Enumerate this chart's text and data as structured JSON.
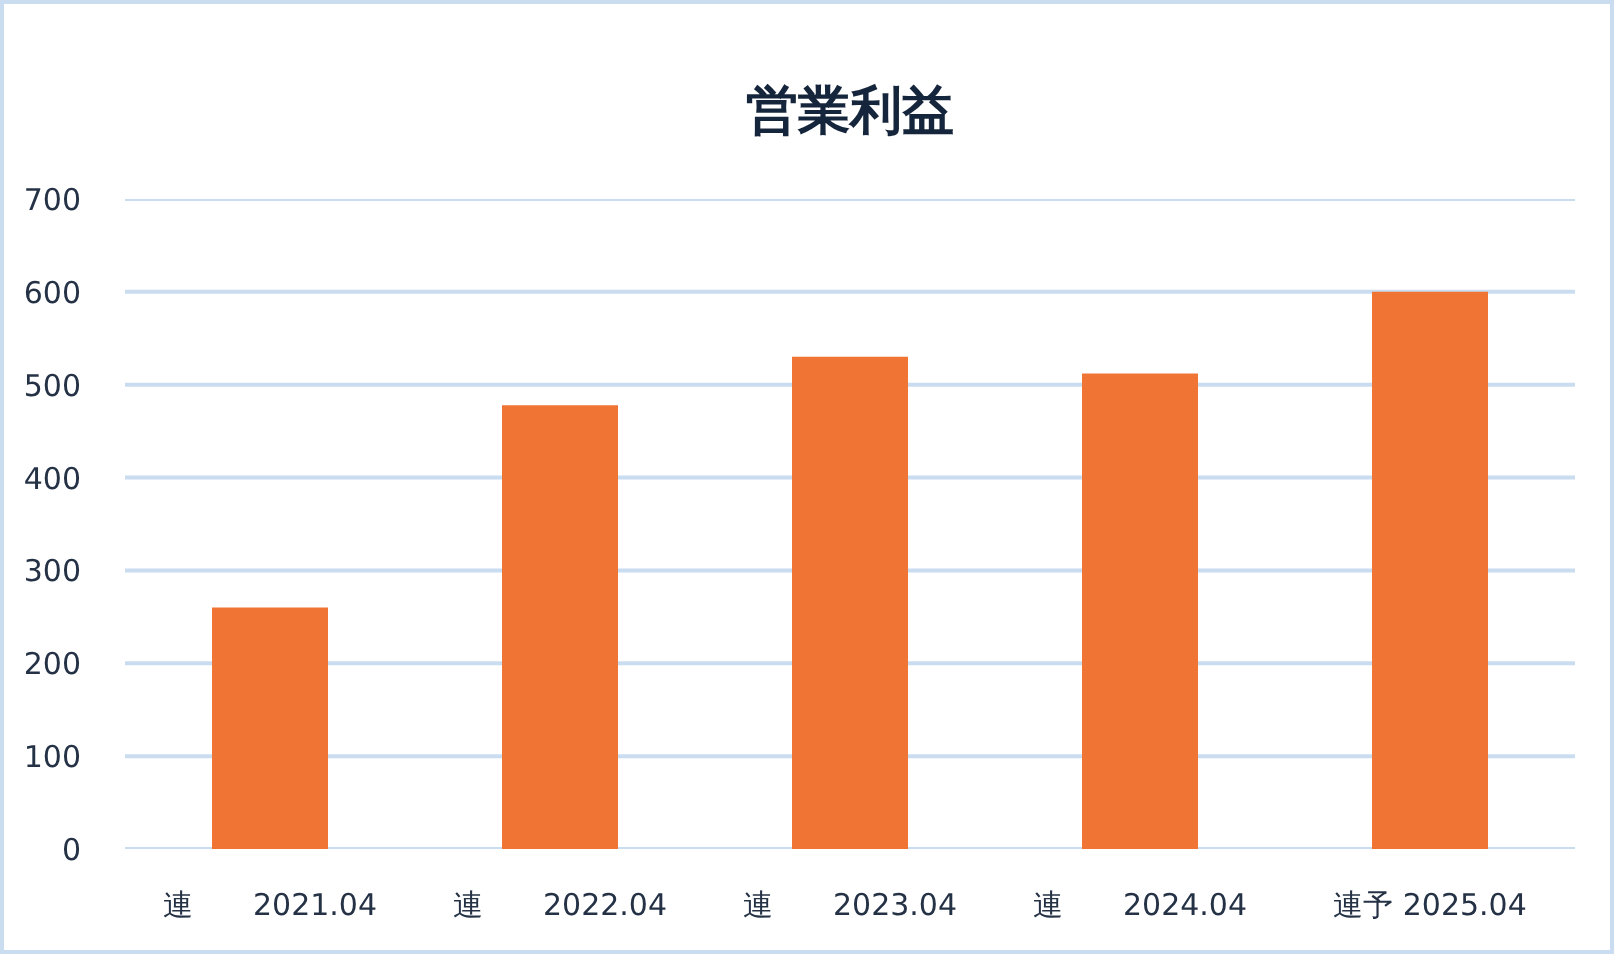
{
  "chart_data": {
    "type": "bar",
    "title": "営業利益",
    "categories": [
      "連　　2021.04",
      "連　　2022.04",
      "連　　2023.04",
      "連　　2024.04",
      "連予 2025.04"
    ],
    "values": [
      260,
      478,
      530,
      512,
      600
    ],
    "color": "#f07433",
    "ylim": [
      0,
      700
    ],
    "yticks": [
      0,
      100,
      200,
      300,
      400,
      500,
      600,
      700
    ],
    "grid": "y"
  }
}
